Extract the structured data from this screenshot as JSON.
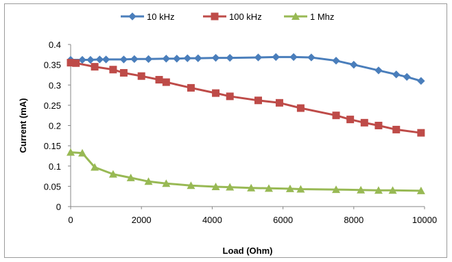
{
  "chart_data": {
    "type": "line",
    "title": "",
    "xlabel": "Load (Ohm)",
    "ylabel": "Current (mA)",
    "xlim": [
      0,
      10000
    ],
    "ylim": [
      0,
      0.4
    ],
    "x_ticks": [
      "0",
      "2000",
      "4000",
      "6000",
      "8000",
      "10000"
    ],
    "y_ticks": [
      "0",
      "0.05",
      "0.1",
      "0.15",
      "0.2",
      "0.25",
      "0.3",
      "0.35",
      "0.4"
    ],
    "grid": false,
    "legend_position": "top",
    "series": [
      {
        "name": "10 kHz",
        "color": "#4a7ebb",
        "marker": "diamond",
        "points": [
          [
            0,
            0.362
          ],
          [
            330,
            0.362
          ],
          [
            560,
            0.362
          ],
          [
            820,
            0.363
          ],
          [
            1000,
            0.363
          ],
          [
            1500,
            0.363
          ],
          [
            1800,
            0.364
          ],
          [
            2200,
            0.364
          ],
          [
            2700,
            0.365
          ],
          [
            3000,
            0.365
          ],
          [
            3300,
            0.366
          ],
          [
            3600,
            0.366
          ],
          [
            4100,
            0.367
          ],
          [
            4500,
            0.367
          ],
          [
            5300,
            0.368
          ],
          [
            5800,
            0.369
          ],
          [
            6300,
            0.369
          ],
          [
            6800,
            0.368
          ],
          [
            7500,
            0.36
          ],
          [
            8000,
            0.35
          ],
          [
            8700,
            0.336
          ],
          [
            9200,
            0.326
          ],
          [
            9500,
            0.32
          ],
          [
            9900,
            0.31
          ]
        ]
      },
      {
        "name": "100 kHz",
        "color": "#be4b48",
        "marker": "square",
        "points": [
          [
            0,
            0.355
          ],
          [
            150,
            0.354
          ],
          [
            680,
            0.345
          ],
          [
            1200,
            0.338
          ],
          [
            1500,
            0.33
          ],
          [
            2000,
            0.322
          ],
          [
            2500,
            0.313
          ],
          [
            2700,
            0.307
          ],
          [
            3400,
            0.293
          ],
          [
            4100,
            0.28
          ],
          [
            4500,
            0.272
          ],
          [
            5300,
            0.262
          ],
          [
            5900,
            0.256
          ],
          [
            6500,
            0.243
          ],
          [
            7500,
            0.225
          ],
          [
            7900,
            0.215
          ],
          [
            8300,
            0.207
          ],
          [
            8700,
            0.2
          ],
          [
            9200,
            0.19
          ],
          [
            9900,
            0.182
          ]
        ]
      },
      {
        "name": "1 Mhz",
        "color": "#98b954",
        "marker": "triangle",
        "points": [
          [
            0,
            0.134
          ],
          [
            330,
            0.132
          ],
          [
            680,
            0.097
          ],
          [
            1200,
            0.08
          ],
          [
            1700,
            0.071
          ],
          [
            2200,
            0.062
          ],
          [
            2700,
            0.057
          ],
          [
            3400,
            0.052
          ],
          [
            4100,
            0.049
          ],
          [
            4500,
            0.048
          ],
          [
            5100,
            0.046
          ],
          [
            5600,
            0.045
          ],
          [
            6200,
            0.044
          ],
          [
            6500,
            0.043
          ],
          [
            7500,
            0.042
          ],
          [
            8200,
            0.041
          ],
          [
            8700,
            0.04
          ],
          [
            9100,
            0.04
          ],
          [
            9900,
            0.039
          ]
        ]
      }
    ]
  }
}
